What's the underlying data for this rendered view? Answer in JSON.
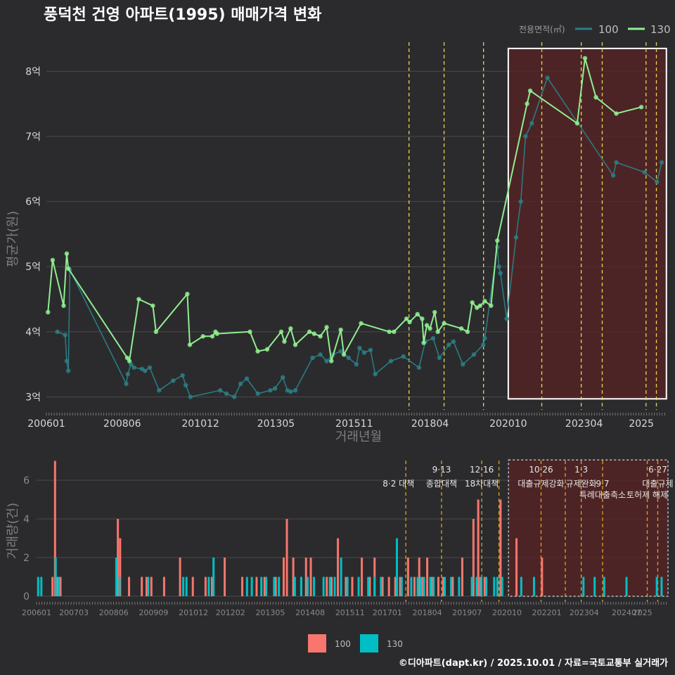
{
  "title": "풍덕천 건영 아파트(1995) 매매가격 변화",
  "footer": "©디아파트(dapt.kr) / 2025.10.01 / 자료=국토교통부 실거래가",
  "colors": {
    "background": "#2b2b2d",
    "grid": "#4a4a4c",
    "line100": "#2a7f86",
    "line130": "#90ee90",
    "bar100": "#f8766d",
    "bar130": "#00bfc4",
    "policy": "#e8d44d",
    "highlight": "#5a2323",
    "text": "#cfcfcf",
    "dimText": "#8a8a8a"
  },
  "chart_data": [
    {
      "type": "line",
      "title": "풍덕천 건영 아파트(1995) 매매가격 변화",
      "xlabel": "거래년월",
      "ylabel": "평균가(원)",
      "ylim": [
        2.8,
        8.5
      ],
      "xlim": [
        2006.0,
        2025.85
      ],
      "yticks": [
        {
          "v": 3,
          "label": "3억"
        },
        {
          "v": 4,
          "label": "4억"
        },
        {
          "v": 5,
          "label": "5억"
        },
        {
          "v": 6,
          "label": "6억"
        },
        {
          "v": 7,
          "label": "7억"
        },
        {
          "v": 8,
          "label": "8억"
        }
      ],
      "xticks": [
        {
          "v": 2006.0,
          "label": "200601"
        },
        {
          "v": 2008.42,
          "label": "200806"
        },
        {
          "v": 2010.92,
          "label": "201012"
        },
        {
          "v": 2013.33,
          "label": "201305"
        },
        {
          "v": 2015.83,
          "label": "201511"
        },
        {
          "v": 2018.25,
          "label": "201804"
        },
        {
          "v": 2020.75,
          "label": "202010"
        },
        {
          "v": 2023.17,
          "label": "202304"
        },
        {
          "v": 2025.0,
          "label": "2025"
        }
      ],
      "legend": {
        "title": "전용면적(㎡)",
        "entries": [
          "100",
          "130"
        ],
        "position": "top-right"
      },
      "highlight_range": {
        "x": [
          2020.75,
          2025.8
        ],
        "y": [
          2.97,
          8.35
        ]
      },
      "policy_dates": [
        2017.58,
        2018.7,
        2019.96,
        2021.82,
        2023.08,
        2023.75,
        2025.15,
        2025.48
      ],
      "series": [
        {
          "name": "130",
          "x": [
            2006.05,
            2006.2,
            2006.55,
            2006.65,
            2006.7,
            2008.58,
            2008.65,
            2008.95,
            2009.4,
            2009.5,
            2010.5,
            2010.58,
            2011.0,
            2011.3,
            2011.4,
            2011.45,
            2012.5,
            2012.75,
            2013.05,
            2013.5,
            2013.6,
            2013.8,
            2013.95,
            2014.4,
            2014.55,
            2014.75,
            2014.95,
            2015.1,
            2015.4,
            2015.5,
            2016.05,
            2016.95,
            2017.1,
            2017.5,
            2017.6,
            2017.85,
            2018.0,
            2018.05,
            2018.15,
            2018.25,
            2018.4,
            2018.5,
            2018.7,
            2019.25,
            2019.45,
            2019.6,
            2019.75,
            2019.85,
            2020.0,
            2020.2,
            2020.4,
            2021.35,
            2021.45,
            2022.95,
            2023.2,
            2023.55,
            2024.2,
            2025.0
          ],
          "values": [
            4.3,
            5.1,
            4.4,
            5.2,
            4.97,
            3.6,
            3.55,
            4.5,
            4.4,
            4.0,
            4.58,
            3.8,
            3.93,
            3.93,
            4.0,
            3.97,
            4.0,
            3.7,
            3.73,
            4.0,
            3.85,
            4.05,
            3.8,
            4.0,
            3.97,
            3.93,
            4.07,
            3.55,
            4.03,
            3.65,
            4.13,
            4.0,
            4.0,
            4.2,
            4.15,
            4.27,
            4.2,
            3.83,
            4.1,
            4.05,
            4.3,
            4.0,
            4.13,
            4.05,
            4.0,
            4.45,
            4.37,
            4.4,
            4.47,
            4.4,
            5.4,
            7.5,
            7.7,
            7.2,
            8.2,
            7.6,
            7.35,
            7.45
          ]
        },
        {
          "name": "100",
          "x": [
            2006.35,
            2006.6,
            2006.65,
            2006.7,
            2006.75,
            2008.55,
            2008.6,
            2008.7,
            2008.8,
            2009.05,
            2009.15,
            2009.3,
            2009.6,
            2010.05,
            2010.35,
            2010.45,
            2010.6,
            2011.55,
            2011.75,
            2012.0,
            2012.2,
            2012.4,
            2012.75,
            2013.15,
            2013.3,
            2013.55,
            2013.7,
            2013.8,
            2013.95,
            2014.5,
            2014.75,
            2014.95,
            2015.15,
            2015.4,
            2015.65,
            2015.9,
            2016.0,
            2016.15,
            2016.35,
            2016.5,
            2017.0,
            2017.4,
            2017.9,
            2018.1,
            2018.35,
            2018.55,
            2018.85,
            2019.0,
            2019.3,
            2019.65,
            2019.95,
            2020.0,
            2020.4,
            2020.45,
            2020.5,
            2020.7,
            2021.0,
            2021.15,
            2021.3,
            2021.5,
            2022.0,
            2024.1,
            2024.2,
            2025.1,
            2025.5,
            2025.65
          ],
          "values": [
            4.0,
            3.95,
            3.55,
            3.4,
            4.95,
            3.2,
            3.35,
            3.5,
            3.45,
            3.43,
            3.4,
            3.45,
            3.1,
            3.25,
            3.33,
            3.18,
            3.0,
            3.1,
            3.05,
            3.0,
            3.2,
            3.28,
            3.05,
            3.1,
            3.13,
            3.3,
            3.1,
            3.08,
            3.1,
            3.6,
            3.65,
            3.55,
            3.65,
            3.7,
            3.6,
            3.5,
            3.75,
            3.68,
            3.72,
            3.35,
            3.55,
            3.62,
            3.45,
            3.85,
            3.9,
            3.6,
            3.8,
            3.85,
            3.5,
            3.65,
            3.8,
            3.9,
            5.3,
            5.0,
            4.9,
            4.2,
            5.45,
            6.0,
            7.0,
            7.2,
            7.9,
            6.4,
            6.6,
            6.45,
            6.3,
            6.6
          ]
        }
      ]
    },
    {
      "type": "bar",
      "ylabel": "거래량(건)",
      "ylim": [
        0,
        7.2
      ],
      "yticks": [
        0,
        2,
        4,
        6
      ],
      "xticks": [
        {
          "v": 2006.0,
          "label": "200601"
        },
        {
          "v": 2007.17,
          "label": "200703"
        },
        {
          "v": 2008.42,
          "label": "200806"
        },
        {
          "v": 2009.67,
          "label": "200909"
        },
        {
          "v": 2010.92,
          "label": "201012"
        },
        {
          "v": 2012.08,
          "label": "201202"
        },
        {
          "v": 2013.33,
          "label": "201305"
        },
        {
          "v": 2014.58,
          "label": "201408"
        },
        {
          "v": 2015.83,
          "label": "201511"
        },
        {
          "v": 2017.0,
          "label": "201701"
        },
        {
          "v": 2018.25,
          "label": "201804"
        },
        {
          "v": 2019.5,
          "label": "201907"
        },
        {
          "v": 2020.75,
          "label": "202010"
        },
        {
          "v": 2022.0,
          "label": "202201"
        },
        {
          "v": 2023.17,
          "label": "202304"
        },
        {
          "v": 2024.5,
          "label": "202407"
        },
        {
          "v": 2025.0,
          "label": "2025"
        }
      ],
      "legend": {
        "entries": [
          "100",
          "130"
        ],
        "position": "bottom"
      },
      "highlight_range": {
        "x": [
          2020.8,
          2025.8
        ]
      },
      "policy_lines": [
        2017.58,
        2018.7,
        2019.96,
        2020.5,
        2021.82,
        2022.58,
        2023.08,
        2023.75,
        2025.15,
        2025.48
      ],
      "annotations": [
        {
          "x": 2017.35,
          "row": 1,
          "text": "8·2 대책"
        },
        {
          "x": 2018.7,
          "row": 0,
          "text": "9·13"
        },
        {
          "x": 2018.7,
          "row": 1,
          "text": "종합대책"
        },
        {
          "x": 2019.96,
          "row": 0,
          "text": "12·16"
        },
        {
          "x": 2019.96,
          "row": 1,
          "text": "18차대책"
        },
        {
          "x": 2021.82,
          "row": 0,
          "text": "10·26"
        },
        {
          "x": 2021.82,
          "row": 1,
          "text": "대출규제강화"
        },
        {
          "x": 2023.08,
          "row": 0,
          "text": "1·3"
        },
        {
          "x": 2023.08,
          "row": 1,
          "text": "규제완화"
        },
        {
          "x": 2023.75,
          "row": 1,
          "text": "9·7"
        },
        {
          "x": 2023.75,
          "row": 2,
          "text": "특례대출축소"
        },
        {
          "x": 2025.48,
          "row": 0,
          "text": "6·27"
        },
        {
          "x": 2025.48,
          "row": 1,
          "text": "대출규제"
        },
        {
          "x": 2025.15,
          "row": 2,
          "text": "토허제 해제"
        }
      ],
      "series": [
        {
          "name": "100",
          "x": [
            2006.5,
            2006.58,
            2006.66,
            2006.75,
            2008.55,
            2008.62,
            2008.9,
            2009.3,
            2009.45,
            2009.6,
            2010.0,
            2010.5,
            2010.9,
            2011.3,
            2011.5,
            2011.9,
            2012.45,
            2012.9,
            2013.15,
            2013.5,
            2013.75,
            2013.85,
            2014.05,
            2014.3,
            2014.45,
            2014.6,
            2015.1,
            2015.25,
            2015.45,
            2015.7,
            2015.9,
            2016.2,
            2016.45,
            2016.6,
            2016.85,
            2017.05,
            2017.25,
            2017.4,
            2017.65,
            2017.85,
            2018.0,
            2018.1,
            2018.25,
            2018.4,
            2018.6,
            2018.75,
            2019.05,
            2019.35,
            2019.7,
            2019.85,
            2019.92,
            2020.05,
            2020.55,
            2021.05,
            2021.85
          ],
          "values": [
            1,
            7,
            1,
            1,
            4,
            3,
            1,
            1,
            1,
            1,
            1,
            2,
            1,
            1,
            1,
            2,
            1,
            1,
            1,
            1,
            2,
            4,
            2,
            1,
            2,
            2,
            1,
            1,
            3,
            1,
            1,
            2,
            1,
            2,
            1,
            1,
            1,
            1,
            2,
            1,
            2,
            1,
            2,
            1,
            1,
            1,
            1,
            2,
            4,
            5,
            1,
            1,
            5,
            3,
            2
          ]
        },
        {
          "name": "130",
          "x": [
            2006.05,
            2006.15,
            2006.6,
            2006.7,
            2008.5,
            2008.6,
            2009.5,
            2010.6,
            2010.7,
            2011.4,
            2011.55,
            2012.6,
            2012.75,
            2013.05,
            2013.2,
            2013.45,
            2013.6,
            2014.1,
            2014.3,
            2014.5,
            2014.7,
            2015.0,
            2015.2,
            2015.35,
            2015.55,
            2015.75,
            2016.1,
            2016.4,
            2016.6,
            2016.8,
            2017.3,
            2017.45,
            2017.75,
            2017.95,
            2018.05,
            2018.15,
            2018.35,
            2018.45,
            2018.8,
            2019.0,
            2019.25,
            2019.65,
            2019.8,
            2019.95,
            2020.1,
            2020.35,
            2020.45,
            2020.6,
            2021.2,
            2021.6,
            2023.15,
            2023.5,
            2023.8,
            2024.5,
            2025.45,
            2025.6
          ],
          "values": [
            1,
            1,
            2,
            1,
            2,
            1,
            1,
            1,
            1,
            1,
            2,
            1,
            1,
            1,
            1,
            1,
            1,
            1,
            1,
            1,
            1,
            1,
            1,
            1,
            2,
            1,
            1,
            1,
            1,
            1,
            3,
            1,
            1,
            1,
            1,
            1,
            1,
            1,
            1,
            1,
            1,
            1,
            1,
            1,
            1,
            1,
            1,
            1,
            1,
            1,
            1,
            1,
            1,
            1,
            1,
            1
          ]
        }
      ]
    }
  ]
}
